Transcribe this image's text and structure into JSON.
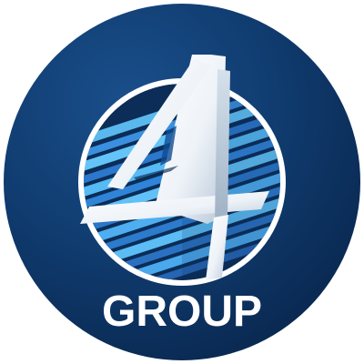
{
  "logo": {
    "mark": "4",
    "wordmark": "GROUP"
  },
  "colors": {
    "page_background": "#ffffff",
    "badge_dark": "#0b2d57",
    "badge_light": "#154880",
    "ring_white": "#ffffff",
    "stripe_light": "#55b7f2",
    "stripe_mid": "#2f84d8",
    "stripe_dark": "#1f5fab",
    "numeral_light": "#f8fbff",
    "numeral_shade": "#aebfd0",
    "wordmark": "#ffffff"
  },
  "icons": {
    "badge": "circle-badge-icon",
    "stripes": "diagonal-stripes-icon",
    "numeral": "numeral-four-icon"
  }
}
